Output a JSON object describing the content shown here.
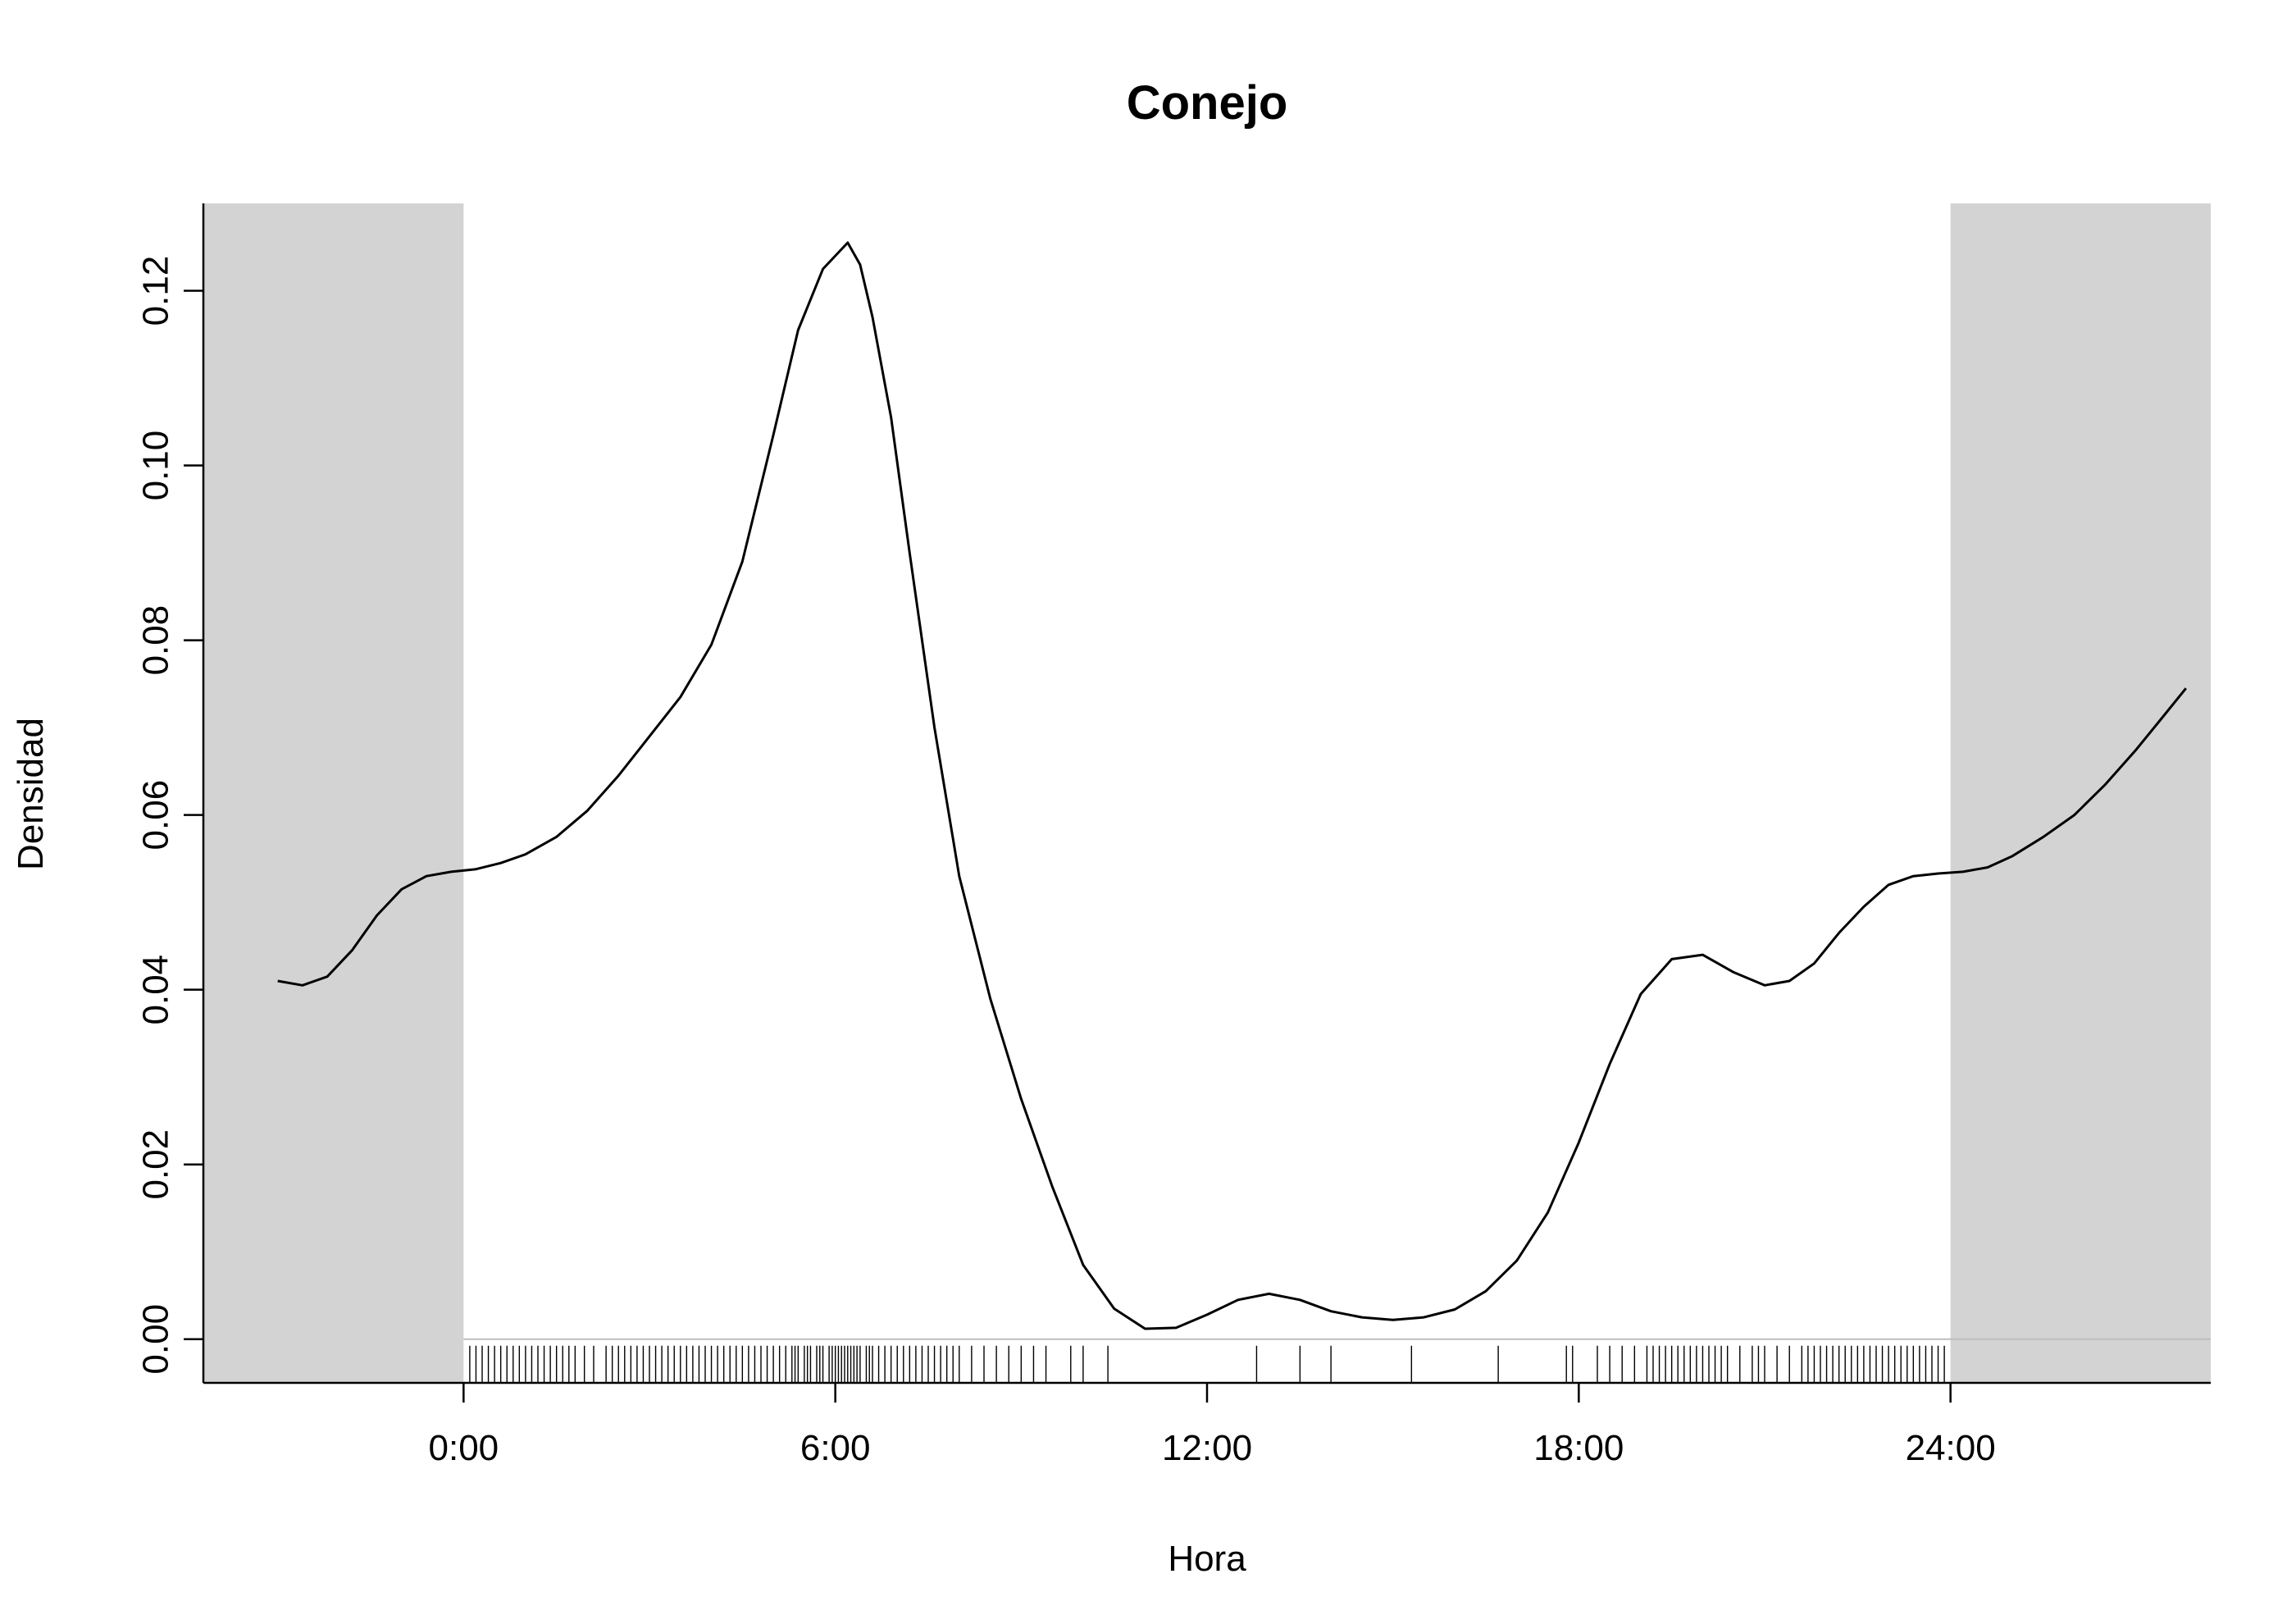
{
  "chart_data": {
    "type": "line",
    "title": "Conejo",
    "xlabel": "Hora",
    "ylabel": "Densidad",
    "xlim": [
      -4.2,
      28.2
    ],
    "ylim": [
      -0.005,
      0.13
    ],
    "x_ticks": [
      {
        "value": 0,
        "label": "0:00"
      },
      {
        "value": 6,
        "label": "6:00"
      },
      {
        "value": 12,
        "label": "12:00"
      },
      {
        "value": 18,
        "label": "18:00"
      },
      {
        "value": 24,
        "label": "24:00"
      }
    ],
    "y_ticks": [
      {
        "value": 0.0,
        "label": "0.00"
      },
      {
        "value": 0.02,
        "label": "0.02"
      },
      {
        "value": 0.04,
        "label": "0.04"
      },
      {
        "value": 0.06,
        "label": "0.06"
      },
      {
        "value": 0.08,
        "label": "0.08"
      },
      {
        "value": 0.1,
        "label": "0.10"
      },
      {
        "value": 0.12,
        "label": "0.12"
      }
    ],
    "shaded_ranges": [
      {
        "from": -4.2,
        "to": 0,
        "color": "#d3d3d3"
      },
      {
        "from": 24,
        "to": 28.2,
        "color": "#d3d3d3"
      }
    ],
    "series": [
      {
        "color": "#000000",
        "x": [
          -3,
          -2.6,
          -2.2,
          -1.8,
          -1.4,
          -1,
          -0.6,
          -0.2,
          0.2,
          0.6,
          1,
          1.5,
          2,
          2.5,
          3,
          3.5,
          4,
          4.5,
          5,
          5.4,
          5.8,
          6.0,
          6.2,
          6.4,
          6.6,
          6.9,
          7.2,
          7.6,
          8,
          8.5,
          9,
          9.5,
          10,
          10.5,
          11,
          11.5,
          12,
          12.5,
          13,
          13.5,
          14,
          14.5,
          15,
          15.5,
          16,
          16.5,
          17,
          17.5,
          18,
          18.5,
          19,
          19.5,
          20,
          20.5,
          21,
          21.4,
          21.8,
          22.2,
          22.6,
          23,
          23.4,
          23.8,
          24.2,
          24.6,
          25,
          25.5,
          26,
          26.5,
          27,
          27.4,
          27.8
        ],
        "y": [
          0.041,
          0.0405,
          0.0415,
          0.0445,
          0.0485,
          0.0515,
          0.053,
          0.0535,
          0.0538,
          0.0545,
          0.0555,
          0.0575,
          0.0605,
          0.0645,
          0.069,
          0.0735,
          0.0795,
          0.089,
          0.1035,
          0.1155,
          0.1225,
          0.124,
          0.1255,
          0.123,
          0.117,
          0.1055,
          0.09,
          0.07,
          0.053,
          0.039,
          0.0275,
          0.0175,
          0.0085,
          0.0035,
          0.0012,
          0.0013,
          0.0028,
          0.0045,
          0.0052,
          0.0045,
          0.0032,
          0.0025,
          0.0022,
          0.0025,
          0.0034,
          0.0055,
          0.009,
          0.0145,
          0.0225,
          0.0315,
          0.0395,
          0.0435,
          0.044,
          0.042,
          0.0405,
          0.041,
          0.043,
          0.0465,
          0.0495,
          0.052,
          0.053,
          0.0533,
          0.0535,
          0.054,
          0.0553,
          0.0575,
          0.06,
          0.0635,
          0.0675,
          0.071,
          0.0745
        ]
      }
    ],
    "rug": [
      0.1,
      0.2,
      0.3,
      0.4,
      0.5,
      0.6,
      0.7,
      0.8,
      0.9,
      1.0,
      1.1,
      1.2,
      1.3,
      1.4,
      1.5,
      1.6,
      1.7,
      1.8,
      1.95,
      2.1,
      2.3,
      2.4,
      2.5,
      2.6,
      2.7,
      2.8,
      2.9,
      3.0,
      3.1,
      3.2,
      3.3,
      3.4,
      3.5,
      3.6,
      3.7,
      3.8,
      3.9,
      4.0,
      4.1,
      4.2,
      4.3,
      4.4,
      4.5,
      4.6,
      4.7,
      4.8,
      4.9,
      5.0,
      5.1,
      5.2,
      5.3,
      5.35,
      5.4,
      5.5,
      5.55,
      5.6,
      5.7,
      5.75,
      5.8,
      5.9,
      5.95,
      6.0,
      6.05,
      6.1,
      6.15,
      6.2,
      6.25,
      6.3,
      6.35,
      6.4,
      6.5,
      6.55,
      6.6,
      6.7,
      6.8,
      6.9,
      7.0,
      7.1,
      7.2,
      7.3,
      7.4,
      7.5,
      7.6,
      7.7,
      7.8,
      7.9,
      8.0,
      8.2,
      8.4,
      8.6,
      8.8,
      9.0,
      9.2,
      9.4,
      9.8,
      10.0,
      10.4,
      12.8,
      13.5,
      14.0,
      15.3,
      16.7,
      17.8,
      17.9,
      18.3,
      18.5,
      18.7,
      18.9,
      19.1,
      19.2,
      19.3,
      19.4,
      19.5,
      19.6,
      19.7,
      19.8,
      19.9,
      20.0,
      20.1,
      20.2,
      20.3,
      20.4,
      20.6,
      20.8,
      20.9,
      21.0,
      21.2,
      21.4,
      21.6,
      21.7,
      21.8,
      21.9,
      22.0,
      22.1,
      22.2,
      22.3,
      22.4,
      22.5,
      22.6,
      22.7,
      22.8,
      22.9,
      23.0,
      23.1,
      23.2,
      23.3,
      23.4,
      23.5,
      23.6,
      23.7,
      23.8,
      23.9
    ]
  }
}
